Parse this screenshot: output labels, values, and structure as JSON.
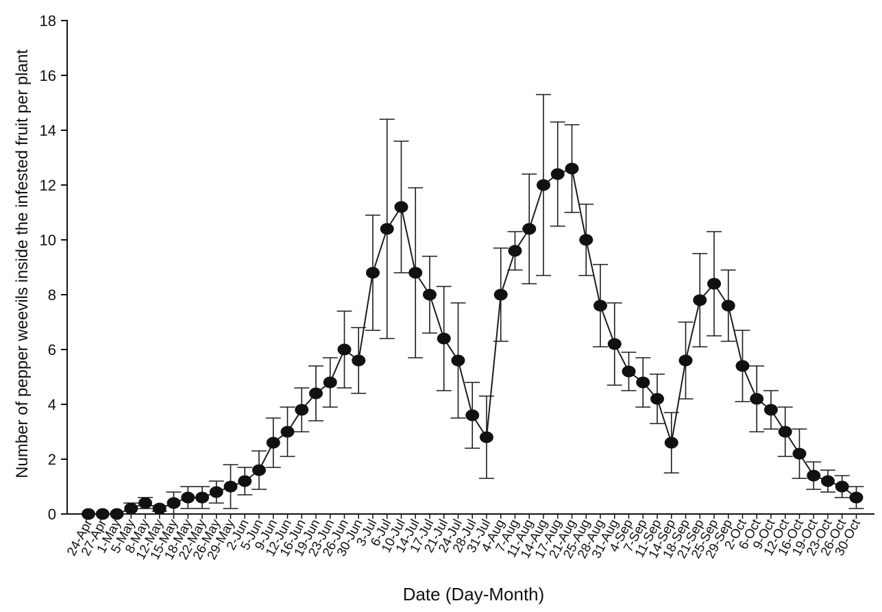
{
  "chart_data": {
    "type": "line",
    "xlabel": "Date (Day-Month)",
    "ylabel": "Number of pepper weevils inside the infested fruit per plant",
    "ylim": [
      0,
      18
    ],
    "yticks": [
      0,
      2,
      4,
      6,
      8,
      10,
      12,
      14,
      16,
      18
    ],
    "grid": false,
    "legend": "none",
    "colors": {
      "line": "#1a1a1a",
      "marker": "#111111",
      "axis": "#111111"
    },
    "categories": [
      "24-Apr",
      "27-Apr",
      "1-May",
      "5-May",
      "8-May",
      "12-May",
      "15-May",
      "18-May",
      "22-May",
      "26-May",
      "29-May",
      "2-Jun",
      "5-Jun",
      "9-Jun",
      "12-Jun",
      "16-Jun",
      "19-Jun",
      "23-Jun",
      "26-Jun",
      "30-Jun",
      "3-Jul",
      "6-Jul",
      "10-Jul",
      "14-Jul",
      "17-Jul",
      "21-Jul",
      "24-Jul",
      "28-Jul",
      "31-Jul",
      "4-Aug",
      "7-Aug",
      "11-Aug",
      "14-Aug",
      "17-Aug",
      "21-Aug",
      "25-Aug",
      "28-Aug",
      "31-Aug",
      "4-Sep",
      "7-Sep",
      "11-Sep",
      "14-Sep",
      "18-Sep",
      "21-Sep",
      "25-Sep",
      "29-Sep",
      "2-Oct",
      "6-Oct",
      "9-Oct",
      "12-Oct",
      "16-Oct",
      "19-Oct",
      "23-Oct",
      "26-Oct",
      "30-Oct"
    ],
    "values": [
      0,
      0,
      0,
      0.2,
      0.4,
      0.2,
      0.4,
      0.6,
      0.6,
      0.8,
      1.0,
      1.2,
      1.6,
      2.6,
      3.0,
      3.8,
      4.4,
      4.8,
      6.0,
      5.6,
      8.8,
      10.4,
      11.2,
      8.8,
      8.0,
      6.4,
      5.6,
      3.6,
      2.8,
      8.0,
      9.6,
      10.4,
      12.0,
      12.4,
      12.6,
      10.0,
      7.6,
      6.2,
      5.2,
      4.8,
      4.2,
      2.6,
      5.6,
      7.8,
      8.4,
      7.6,
      5.4,
      4.2,
      3.8,
      3.0,
      2.2,
      1.4,
      1.2,
      1.0,
      0.6
    ],
    "error": [
      0,
      0,
      0,
      0.2,
      0.2,
      0.1,
      0.4,
      0.4,
      0.4,
      0.4,
      0.8,
      0.5,
      0.7,
      0.9,
      0.9,
      0.8,
      1.0,
      0.9,
      1.4,
      1.2,
      2.1,
      4.0,
      2.4,
      3.1,
      1.4,
      1.9,
      2.1,
      1.2,
      1.5,
      1.7,
      0.7,
      2.0,
      3.3,
      1.9,
      1.6,
      1.3,
      1.5,
      1.5,
      0.7,
      0.9,
      0.9,
      1.1,
      1.4,
      1.7,
      1.9,
      1.3,
      1.3,
      1.2,
      0.7,
      0.9,
      0.9,
      0.5,
      0.4,
      0.4,
      0.4
    ]
  }
}
